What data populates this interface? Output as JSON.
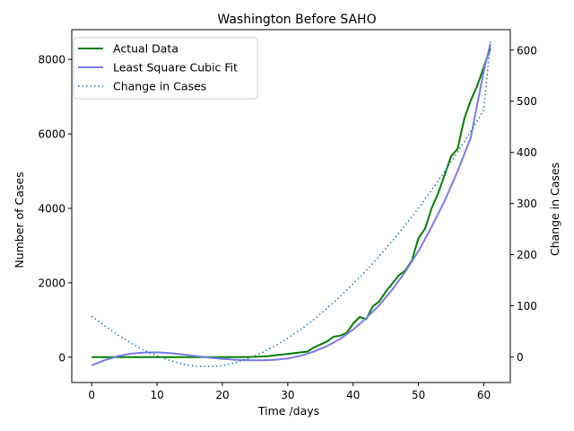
{
  "chart_data": {
    "type": "line",
    "title": "Washington Before SAHO",
    "xlabel": "Time /days",
    "ylabel": "Number of Cases",
    "y2label": "Change in Cases",
    "xlim": [
      -3.05,
      64.05
    ],
    "ylim": [
      -680,
      8800
    ],
    "y2lim": [
      -50,
      640
    ],
    "xticks": [
      0,
      10,
      20,
      30,
      40,
      50,
      60
    ],
    "yticks": [
      0,
      2000,
      4000,
      6000,
      8000
    ],
    "y2ticks": [
      0,
      100,
      200,
      300,
      400,
      500,
      600
    ],
    "legend_position": "upper-left",
    "series": [
      {
        "name": "Actual Data",
        "axis": "left",
        "style": "solid",
        "color": "#008000",
        "x": [
          0,
          1,
          2,
          3,
          4,
          5,
          6,
          7,
          8,
          9,
          10,
          11,
          12,
          13,
          14,
          15,
          16,
          17,
          18,
          19,
          20,
          21,
          22,
          23,
          24,
          25,
          26,
          27,
          28,
          29,
          30,
          31,
          32,
          33,
          34,
          35,
          36,
          37,
          38,
          39,
          40,
          41,
          42,
          43,
          44,
          45,
          46,
          47,
          48,
          49,
          50,
          51,
          52,
          53,
          54,
          55,
          56,
          57,
          58,
          59,
          60,
          61
        ],
        "y": [
          1,
          1,
          1,
          1,
          1,
          1,
          1,
          1,
          1,
          1,
          1,
          1,
          1,
          1,
          1,
          1,
          1,
          1,
          1,
          1,
          1,
          1,
          1,
          2,
          5,
          10,
          20,
          30,
          50,
          70,
          90,
          110,
          130,
          150,
          260,
          340,
          420,
          550,
          580,
          650,
          900,
          1080,
          1020,
          1360,
          1500,
          1760,
          1980,
          2200,
          2330,
          2600,
          3200,
          3450,
          4000,
          4400,
          4900,
          5400,
          5600,
          6400,
          6900,
          7300,
          7800,
          8300
        ]
      },
      {
        "name": "Least Square Cubic Fit",
        "axis": "left",
        "style": "solid",
        "color": "#7b7bee",
        "x": [
          0,
          2,
          4,
          6,
          8,
          10,
          12,
          14,
          16,
          18,
          20,
          22,
          24,
          26,
          28,
          30,
          32,
          34,
          36,
          38,
          40,
          42,
          44,
          46,
          48,
          50,
          52,
          54,
          56,
          58,
          60,
          61
        ],
        "y": [
          -220,
          -80,
          30,
          95,
          125,
          130,
          110,
          75,
          30,
          -10,
          -45,
          -70,
          -82,
          -85,
          -72,
          -35,
          40,
          150,
          300,
          490,
          740,
          1050,
          1400,
          1820,
          2300,
          2850,
          3500,
          4200,
          5000,
          5900,
          7700,
          8420
        ]
      },
      {
        "name": "Change in Cases",
        "axis": "right",
        "style": "dotted",
        "color": "#1f77b4",
        "x": [
          0,
          2,
          4,
          6,
          8,
          10,
          12,
          14,
          16,
          18,
          20,
          22,
          24,
          26,
          28,
          30,
          32,
          34,
          36,
          38,
          40,
          42,
          44,
          46,
          48,
          50,
          52,
          54,
          56,
          58,
          60,
          61
        ],
        "y": [
          80,
          61,
          43,
          27,
          13,
          2,
          -7,
          -14,
          -18,
          -19,
          -17,
          -11,
          -3,
          8,
          21,
          37,
          54,
          73,
          95,
          118,
          143,
          169,
          197,
          227,
          258,
          291,
          326,
          363,
          401,
          441,
          483,
          618
        ]
      }
    ]
  }
}
